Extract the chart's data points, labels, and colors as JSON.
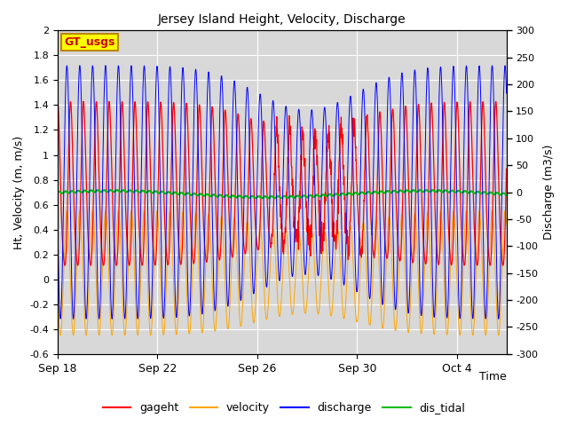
{
  "title": "Jersey Island Height, Velocity, Discharge",
  "xlabel": "Time",
  "ylabel_left": "Ht, Velocity (m, m/s)",
  "ylabel_right": "Discharge (m3/s)",
  "ylim_left": [
    -0.6,
    2.0
  ],
  "ylim_right": [
    -300,
    300
  ],
  "n_days": 18,
  "legend_labels": [
    "gageht",
    "velocity",
    "discharge",
    "dis_tidal"
  ],
  "legend_colors": [
    "#ff0000",
    "#ffa500",
    "#0000ff",
    "#00aa00"
  ],
  "gt_usgs_box_color": "#ffff00",
  "gt_usgs_border_color": "#b8860b",
  "background_plot_color": "#d8d8d8",
  "yticks_left": [
    -0.6,
    -0.4,
    -0.2,
    0.0,
    0.2,
    0.4,
    0.6,
    0.8,
    1.0,
    1.2,
    1.4,
    1.6,
    1.8,
    2.0
  ],
  "yticks_right": [
    -300,
    -250,
    -200,
    -150,
    -100,
    -50,
    0,
    50,
    100,
    150,
    200,
    250,
    300
  ],
  "xtick_labels": [
    "Sep 18",
    "Sep 22",
    "Sep 26",
    "Sep 30",
    "Oct 4"
  ],
  "xtick_positions": [
    0,
    4,
    8,
    12,
    16
  ]
}
